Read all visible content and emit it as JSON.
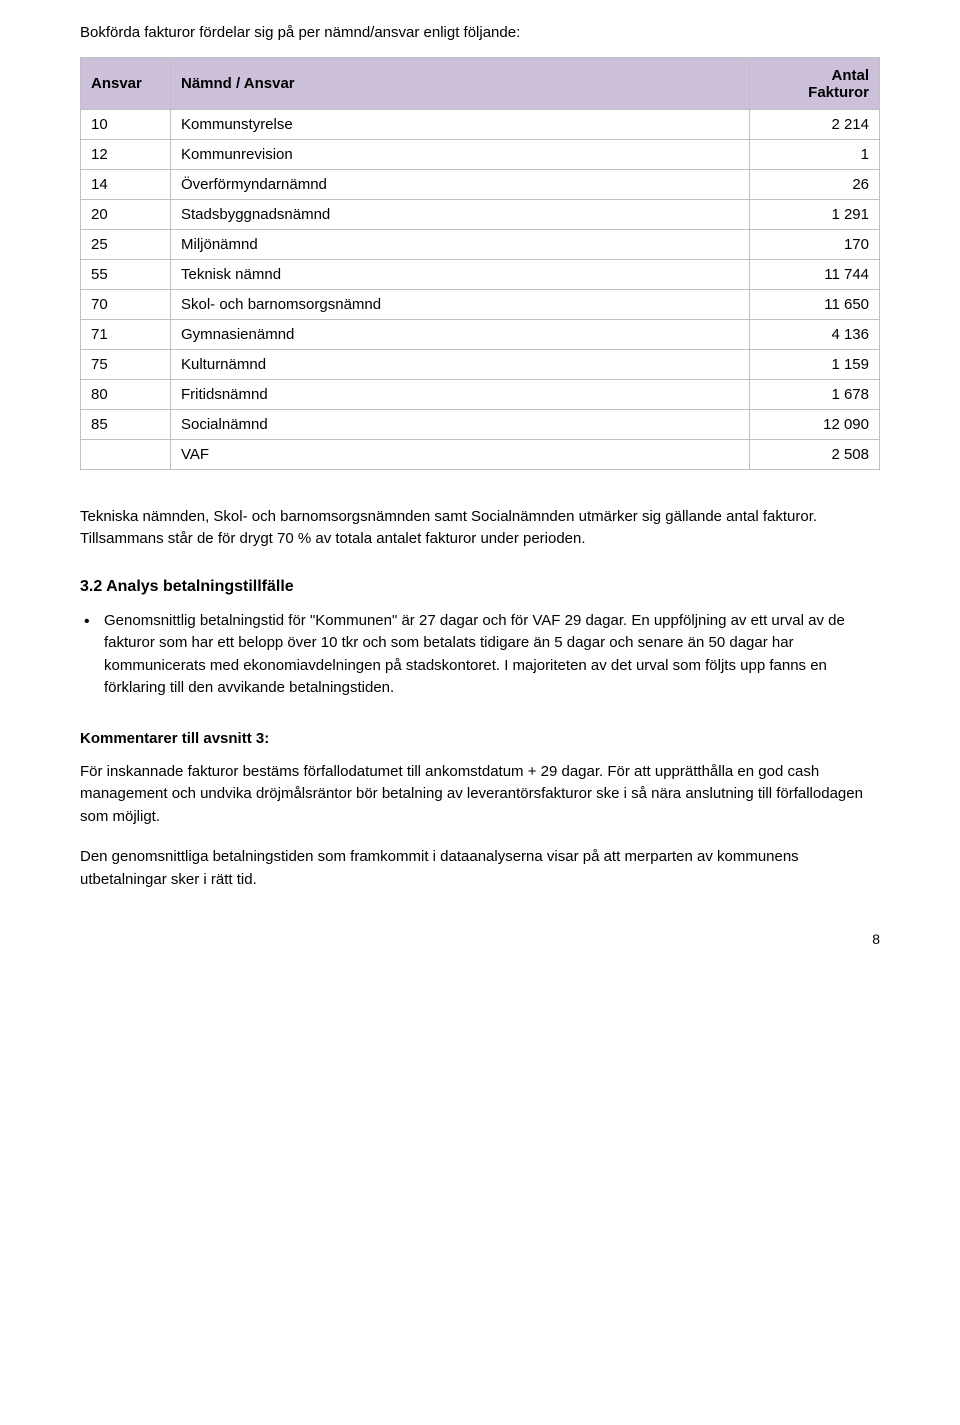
{
  "intro": "Bokförda fakturor fördelar sig på per nämnd/ansvar enligt följande:",
  "table": {
    "headers": {
      "col1": "Ansvar",
      "col2": "Nämnd / Ansvar",
      "col3_line1": "Antal",
      "col3_line2": "Fakturor"
    },
    "rows": [
      {
        "c1": "10",
        "c2": "Kommunstyrelse",
        "c3": "2 214"
      },
      {
        "c1": "12",
        "c2": "Kommunrevision",
        "c3": "1"
      },
      {
        "c1": "14",
        "c2": "Överförmyndarnämnd",
        "c3": "26"
      },
      {
        "c1": "20",
        "c2": "Stadsbyggnadsnämnd",
        "c3": "1 291"
      },
      {
        "c1": "25",
        "c2": "Miljönämnd",
        "c3": "170"
      },
      {
        "c1": "55",
        "c2": "Teknisk nämnd",
        "c3": "11 744"
      },
      {
        "c1": "70",
        "c2": "Skol- och barnomsorgsnämnd",
        "c3": "11 650"
      },
      {
        "c1": "71",
        "c2": "Gymnasienämnd",
        "c3": "4 136"
      },
      {
        "c1": "75",
        "c2": "Kulturnämnd",
        "c3": "1 159"
      },
      {
        "c1": "80",
        "c2": "Fritidsnämnd",
        "c3": "1 678"
      },
      {
        "c1": "85",
        "c2": "Socialnämnd",
        "c3": "12 090"
      },
      {
        "c1": "",
        "c2": "VAF",
        "c3": "2 508"
      }
    ]
  },
  "body_after_table": "Tekniska nämnden, Skol- och barnomsorgsnämnden samt Socialnämnden utmärker sig gällande antal fakturor. Tillsammans står de för drygt 70 % av totala antalet fakturor under perioden.",
  "section_heading": "3.2 Analys betalningstillfälle",
  "bullet": "Genomsnittlig betalningstid för \"Kommunen\" är 27 dagar och för VAF 29 dagar. En uppföljning av ett urval av de fakturor som har ett belopp över 10 tkr och som betalats tidigare än 5 dagar och senare än 50 dagar har kommunicerats med ekonomiavdelningen på stadskontoret. I majoriteten av det urval som följts upp fanns en förklaring till den avvikande betalningstiden.",
  "comments_heading": "Kommentarer till avsnitt 3:",
  "para1": "För inskannade fakturor bestäms förfallodatumet till ankomstdatum + 29 dagar. För att upprätthålla en god cash management och undvika dröjmålsräntor bör betalning av leverantörsfakturor ske i så nära anslutning till förfallodagen som möjligt.",
  "para2": "Den genomsnittliga betalningstiden som framkommit i dataanalyserna visar på att merparten av kommunens utbetalningar sker i rätt tid.",
  "page_number": "8",
  "colors": {
    "header_bg": "#ccc0da",
    "border": "#c0c0c0",
    "text": "#000000",
    "page_bg": "#ffffff"
  }
}
